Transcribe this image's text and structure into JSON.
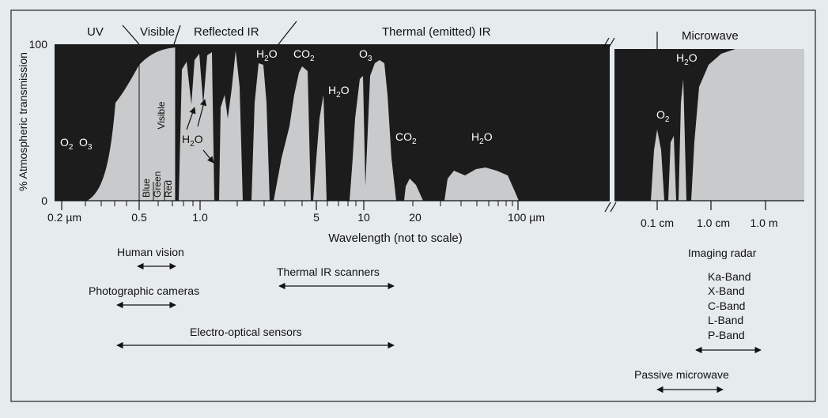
{
  "regions": {
    "uv": "UV",
    "visible": "Visible",
    "reflected_ir": "Reflected IR",
    "thermal_ir": "Thermal (emitted) IR",
    "microwave": "Microwave"
  },
  "y_axis": {
    "label": "% Atmospheric transmission",
    "ticks": [
      "100",
      "0"
    ]
  },
  "x_axis": {
    "title": "Wavelength (not to scale)",
    "ticks": [
      "0.2 µm",
      "0.5",
      "1.0",
      "5",
      "10",
      "20",
      "100 µm",
      "0.1 cm",
      "1.0 cm",
      "1.0 m"
    ]
  },
  "in_plot": {
    "visible_vertical": "Visible",
    "bands": [
      "Blue",
      "Green",
      "Red"
    ]
  },
  "absorbers": {
    "o2": "O",
    "o2_sub": "2",
    "o3": "O",
    "o3_sub": "3",
    "h2o": "H",
    "h2o_sub": "2",
    "h2o_end": "O",
    "co2": "CO",
    "co2_sub": "2"
  },
  "sensors": {
    "human_vision": "Human vision",
    "photographic_cameras": "Photographic cameras",
    "electro_optical": "Electro-optical sensors",
    "thermal_ir_scanners": "Thermal IR scanners",
    "imaging_radar": "Imaging radar",
    "radar_bands": [
      "Ka-Band",
      "X-Band",
      "C-Band",
      "L-Band",
      "P-Band"
    ],
    "passive_microwave": "Passive microwave"
  },
  "colors": {
    "background": "#e6ebee",
    "absorption": "#1c1c1c",
    "transmission": "#c9cacb",
    "frame": "#222222"
  }
}
